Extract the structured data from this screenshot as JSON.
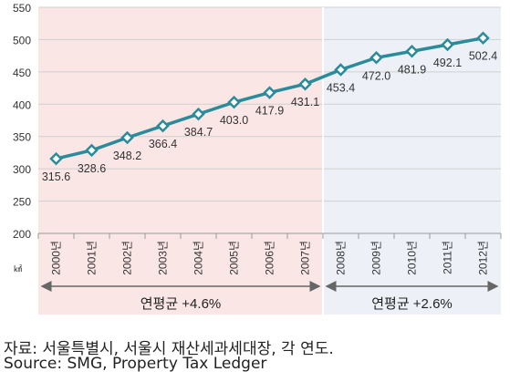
{
  "chart_data": {
    "type": "line",
    "x": [
      "2000년",
      "2001년",
      "2002년",
      "2003년",
      "2004년",
      "2005년",
      "2006년",
      "2007년",
      "2008년",
      "2009년",
      "2010년",
      "2011년",
      "2012년"
    ],
    "series": [
      {
        "values": [
          315.6,
          328.6,
          348.2,
          366.4,
          384.7,
          403.0,
          417.9,
          431.1,
          453.4,
          472.0,
          481.9,
          492.1,
          502.4
        ]
      }
    ],
    "data_labels": [
      "315.6",
      "328.6",
      "348.2",
      "366.4",
      "384.7",
      "403.0",
      "417.9",
      "431.1",
      "453.4",
      "472.0",
      "481.9",
      "492.1",
      "502.4"
    ],
    "ylim": [
      200,
      550
    ],
    "yticks": [
      200,
      250,
      300,
      350,
      400,
      450,
      500,
      550
    ],
    "unit": "㎢",
    "grid": true,
    "line_color": "#2a8b9a",
    "periods": [
      {
        "label": "연평균 +4.6%",
        "from": "2000년",
        "to": "2007년",
        "color": "#fbe6e6"
      },
      {
        "label": "연평균 +2.6%",
        "from": "2008년",
        "to": "2012년",
        "color": "#edf1f7"
      }
    ]
  },
  "source": {
    "korean": "자료: 서울특별시, 서울시 재산세과세대장, 각 연도.",
    "english": "Source: SMG, Property Tax Ledger"
  }
}
